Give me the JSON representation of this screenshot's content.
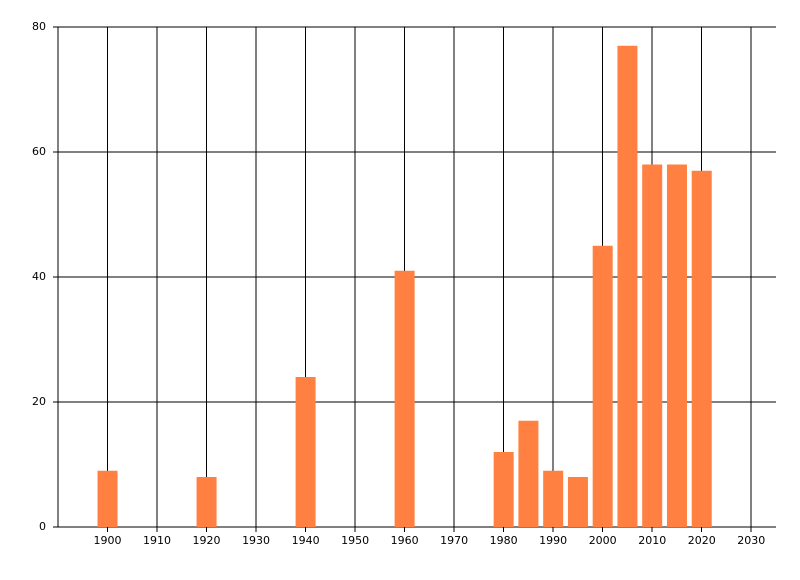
{
  "chart_data": {
    "type": "bar",
    "x": [
      1900,
      1920,
      1940,
      1960,
      1980,
      1985,
      1990,
      1995,
      2000,
      2005,
      2010,
      2015,
      2020
    ],
    "values": [
      9,
      8,
      24,
      41,
      12,
      17,
      9,
      8,
      45,
      77,
      58,
      58,
      57
    ],
    "color": "#ff8040",
    "xlim": [
      1890,
      2035
    ],
    "xticks": [
      1900,
      1910,
      1920,
      1930,
      1940,
      1950,
      1960,
      1970,
      1980,
      1990,
      2000,
      2010,
      2020,
      2030
    ],
    "ylim": [
      0,
      80
    ],
    "yticks": [
      0,
      20,
      40,
      60,
      80
    ],
    "grid": true
  }
}
